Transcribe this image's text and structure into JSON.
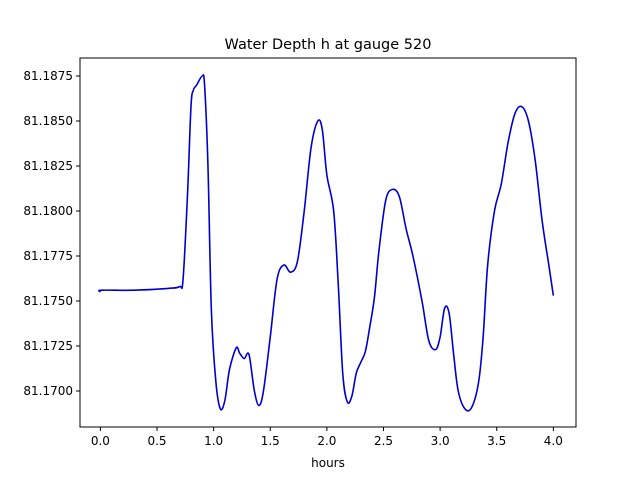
{
  "chart_data": {
    "type": "line",
    "title": "Water Depth h at gauge 520",
    "xlabel": "hours",
    "ylabel": "",
    "xlim": [
      -0.18,
      4.2
    ],
    "ylim": [
      81.168,
      81.1885
    ],
    "xticks": [
      0.0,
      0.5,
      1.0,
      1.5,
      2.0,
      2.5,
      3.0,
      3.5,
      4.0
    ],
    "xtick_labels": [
      "0.0",
      "0.5",
      "1.0",
      "1.5",
      "2.0",
      "2.5",
      "3.0",
      "3.5",
      "4.0"
    ],
    "yticks": [
      81.17,
      81.1725,
      81.175,
      81.1775,
      81.18,
      81.1825,
      81.185,
      81.1875
    ],
    "ytick_labels": [
      "81.1700",
      "81.1725",
      "81.1750",
      "81.1775",
      "81.1800",
      "81.1825",
      "81.1850",
      "81.1875"
    ],
    "grid": false,
    "series": [
      {
        "color": "#0000cc",
        "x": [
          0.0,
          0.01,
          0.3,
          0.6,
          0.7,
          0.73,
          0.77,
          0.8,
          0.82,
          0.85,
          0.9,
          0.92,
          0.95,
          0.98,
          1.02,
          1.06,
          1.1,
          1.14,
          1.2,
          1.23,
          1.27,
          1.3,
          1.32,
          1.36,
          1.4,
          1.44,
          1.5,
          1.56,
          1.62,
          1.68,
          1.74,
          1.8,
          1.86,
          1.92,
          1.96,
          2.0,
          2.06,
          2.1,
          2.14,
          2.18,
          2.22,
          2.26,
          2.3,
          2.34,
          2.38,
          2.42,
          2.46,
          2.52,
          2.58,
          2.64,
          2.7,
          2.76,
          2.84,
          2.9,
          2.96,
          3.0,
          3.04,
          3.08,
          3.12,
          3.16,
          3.22,
          3.28,
          3.34,
          3.38,
          3.42,
          3.48,
          3.54,
          3.6,
          3.66,
          3.72,
          3.78,
          3.84,
          3.9,
          3.96,
          4.0
        ],
        "values": [
          81.1755,
          81.1756,
          81.1756,
          81.1757,
          81.1758,
          81.1762,
          81.181,
          81.1858,
          81.1867,
          81.187,
          81.1875,
          81.187,
          81.1825,
          81.1745,
          81.1705,
          81.169,
          81.1695,
          81.1712,
          81.1724,
          81.1721,
          81.1718,
          81.1721,
          81.1718,
          81.17,
          81.1692,
          81.17,
          81.173,
          81.1762,
          81.177,
          81.1766,
          81.1772,
          81.18,
          81.1835,
          81.185,
          81.1845,
          81.182,
          81.18,
          81.176,
          81.171,
          81.1694,
          81.1697,
          81.171,
          81.1716,
          81.1722,
          81.1736,
          81.1752,
          81.1778,
          81.1806,
          81.1812,
          81.1808,
          81.179,
          81.1775,
          81.175,
          81.1728,
          81.1723,
          81.173,
          81.1746,
          81.1743,
          81.172,
          81.17,
          81.169,
          81.1691,
          81.1705,
          81.173,
          81.177,
          81.18,
          81.1815,
          81.1838,
          81.1854,
          81.1858,
          81.185,
          81.1828,
          81.1795,
          81.177,
          81.1753
        ]
      }
    ]
  }
}
